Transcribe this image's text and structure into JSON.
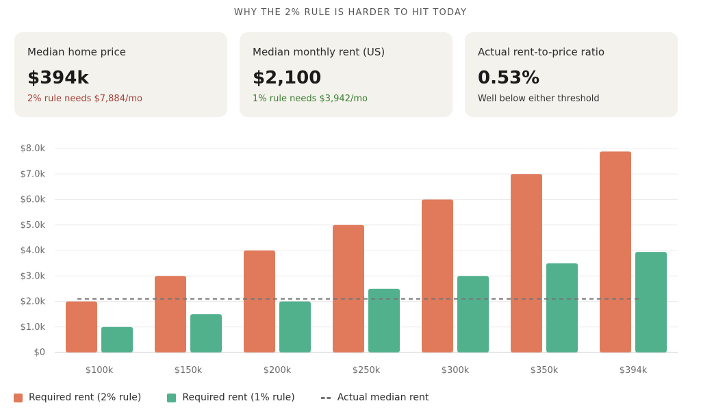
{
  "title": "WHY THE 2% RULE IS HARDER TO HIT TODAY",
  "cards": [
    {
      "label": "Median home price",
      "value": "$394k",
      "note": "2% rule needs $7,884/mo",
      "note_color": "#a3403a"
    },
    {
      "label": "Median monthly rent (US)",
      "value": "$2,100",
      "note": "1% rule needs $3,942/mo",
      "note_color": "#3d7d33"
    },
    {
      "label": "Actual rent-to-price ratio",
      "value": "0.53%",
      "note": "Well below either threshold",
      "note_color": "#333333"
    }
  ],
  "colors": {
    "rule2": "#e07a5b",
    "rule1": "#52b18d",
    "median": "#777777"
  },
  "chart_data": {
    "type": "bar",
    "categories": [
      "$100k",
      "$150k",
      "$200k",
      "$250k",
      "$300k",
      "$350k",
      "$394k"
    ],
    "series": [
      {
        "name": "Required rent (2% rule)",
        "values": [
          2000,
          3000,
          4000,
          5000,
          6000,
          7000,
          7884
        ]
      },
      {
        "name": "Required rent (1% rule)",
        "values": [
          1000,
          1500,
          2000,
          2500,
          3000,
          3500,
          3942
        ]
      }
    ],
    "reference_line": {
      "name": "Actual median rent",
      "value": 2100,
      "style": "dashed"
    },
    "yticks": [
      "$0",
      "$1.0k",
      "$2.0k",
      "$3.0k",
      "$4.0k",
      "$5.0k",
      "$6.0k",
      "$7.0k",
      "$8.0k"
    ],
    "ylim": [
      0,
      8000
    ],
    "grid": true,
    "legend": "bottom-left"
  }
}
